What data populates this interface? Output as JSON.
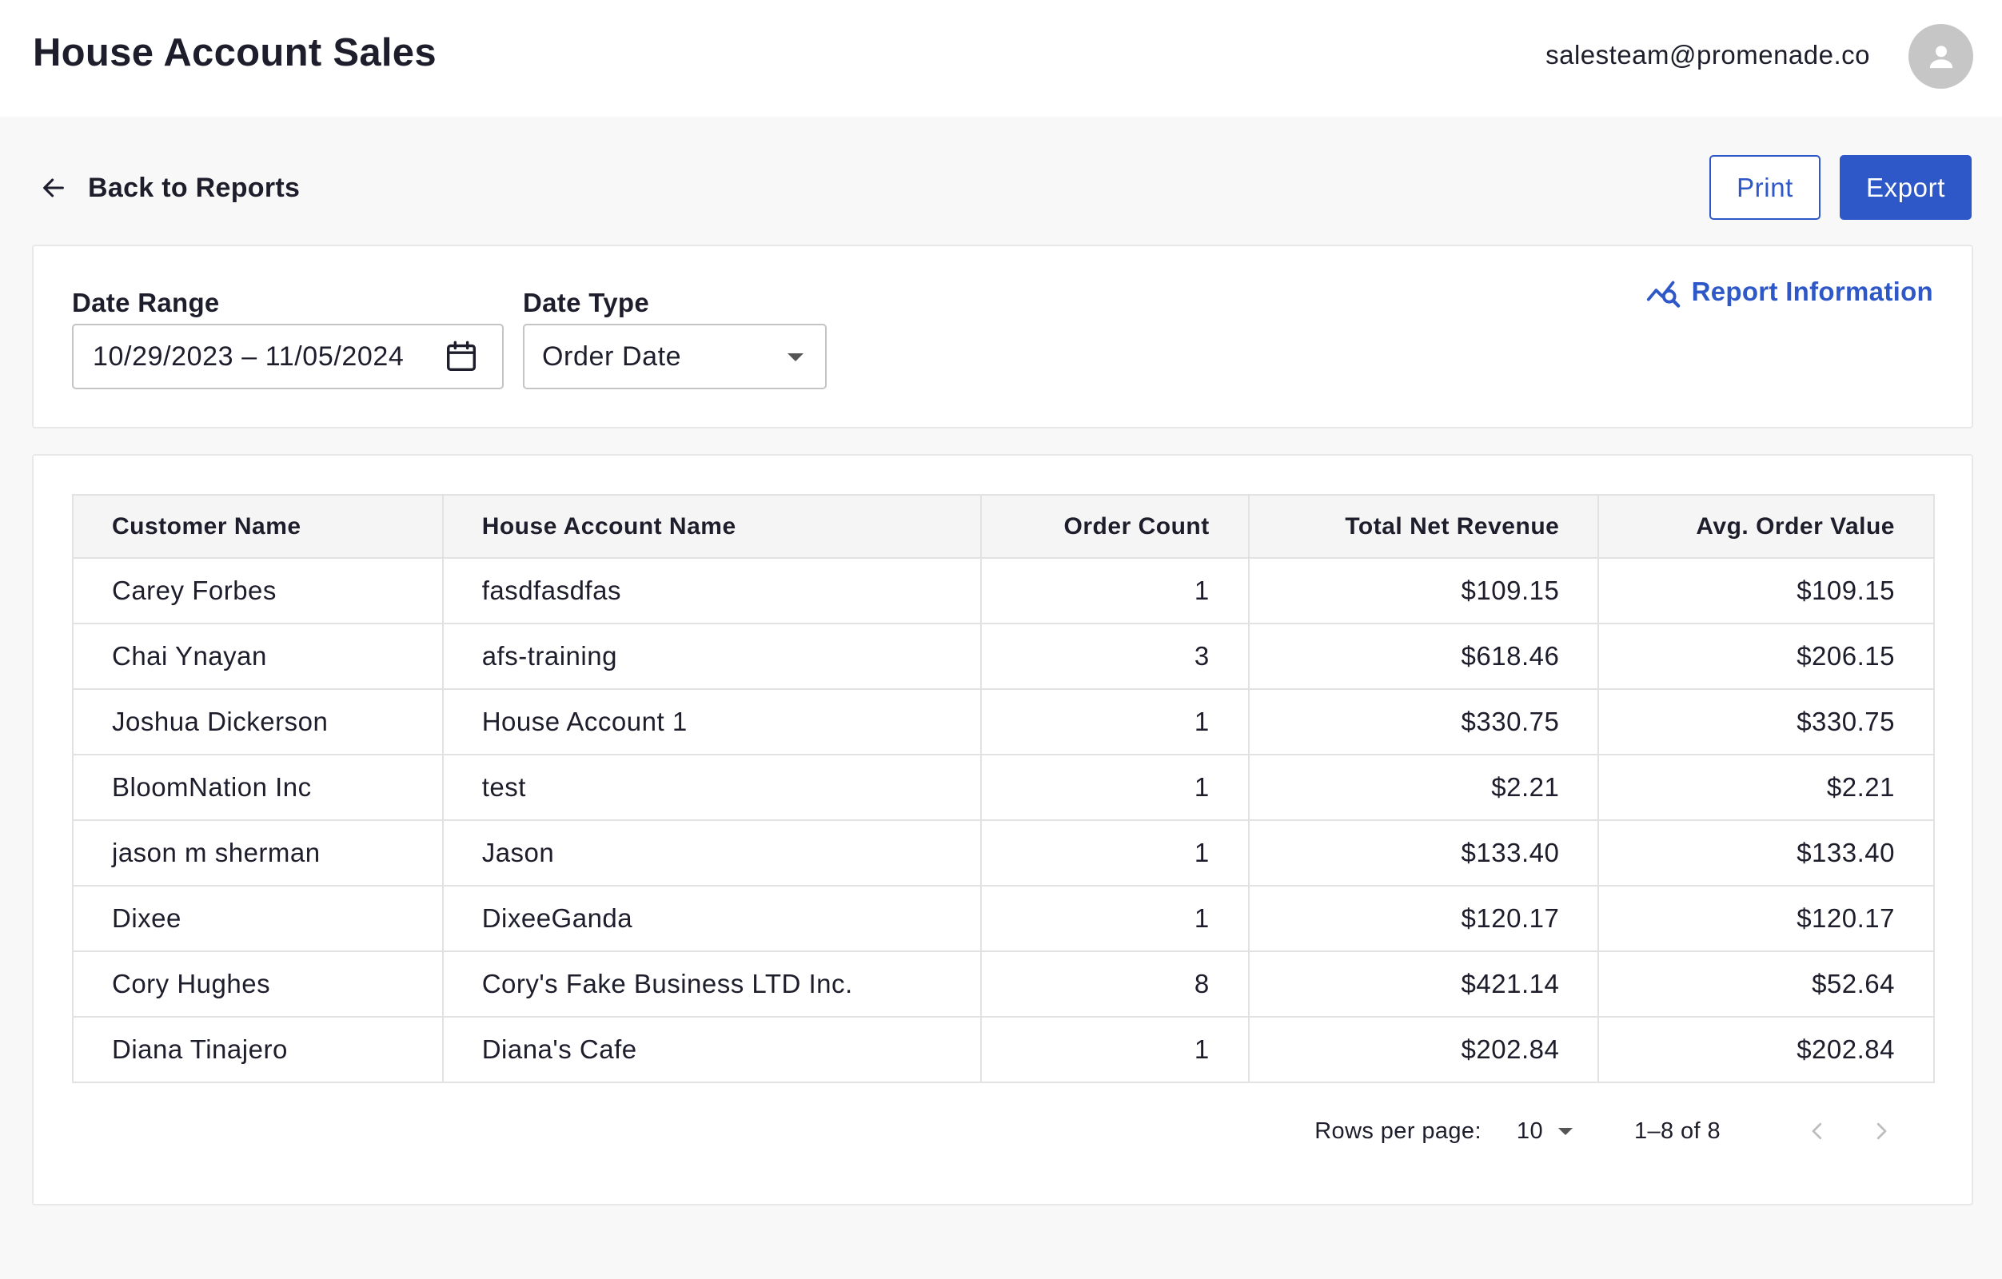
{
  "header": {
    "title": "House Account Sales",
    "user_email": "salesteam@promenade.co",
    "avatar_icon": "person-icon"
  },
  "actions": {
    "back_label": "Back to Reports",
    "print_label": "Print",
    "export_label": "Export"
  },
  "filters": {
    "date_range_label": "Date Range",
    "date_range_value": "10/29/2023 – 11/05/2024",
    "date_type_label": "Date Type",
    "date_type_value": "Order Date",
    "report_info_label": "Report Information"
  },
  "table": {
    "columns": [
      "Customer Name",
      "House Account Name",
      "Order Count",
      "Total Net Revenue",
      "Avg. Order Value"
    ],
    "rows": [
      {
        "customer": "Carey Forbes",
        "account": "fasdfasdfas",
        "count": "1",
        "revenue": "$109.15",
        "avg": "$109.15"
      },
      {
        "customer": "Chai Ynayan",
        "account": "afs-training",
        "count": "3",
        "revenue": "$618.46",
        "avg": "$206.15"
      },
      {
        "customer": "Joshua Dickerson",
        "account": "House Account 1",
        "count": "1",
        "revenue": "$330.75",
        "avg": "$330.75"
      },
      {
        "customer": "BloomNation Inc",
        "account": "test",
        "count": "1",
        "revenue": "$2.21",
        "avg": "$2.21"
      },
      {
        "customer": "jason m sherman",
        "account": "Jason",
        "count": "1",
        "revenue": "$133.40",
        "avg": "$133.40"
      },
      {
        "customer": "Dixee",
        "account": "DixeeGanda",
        "count": "1",
        "revenue": "$120.17",
        "avg": "$120.17"
      },
      {
        "customer": "Cory Hughes",
        "account": "Cory's Fake Business LTD Inc.",
        "count": "8",
        "revenue": "$421.14",
        "avg": "$52.64"
      },
      {
        "customer": "Diana Tinajero",
        "account": "Diana's Cafe",
        "count": "1",
        "revenue": "$202.84",
        "avg": "$202.84"
      }
    ]
  },
  "pagination": {
    "rows_per_page_label": "Rows per page:",
    "rows_per_page_value": "10",
    "range": "1–8 of 8"
  },
  "colors": {
    "accent": "#2e57c7",
    "background": "#f8f8f8",
    "border": "#e2e2e2"
  }
}
